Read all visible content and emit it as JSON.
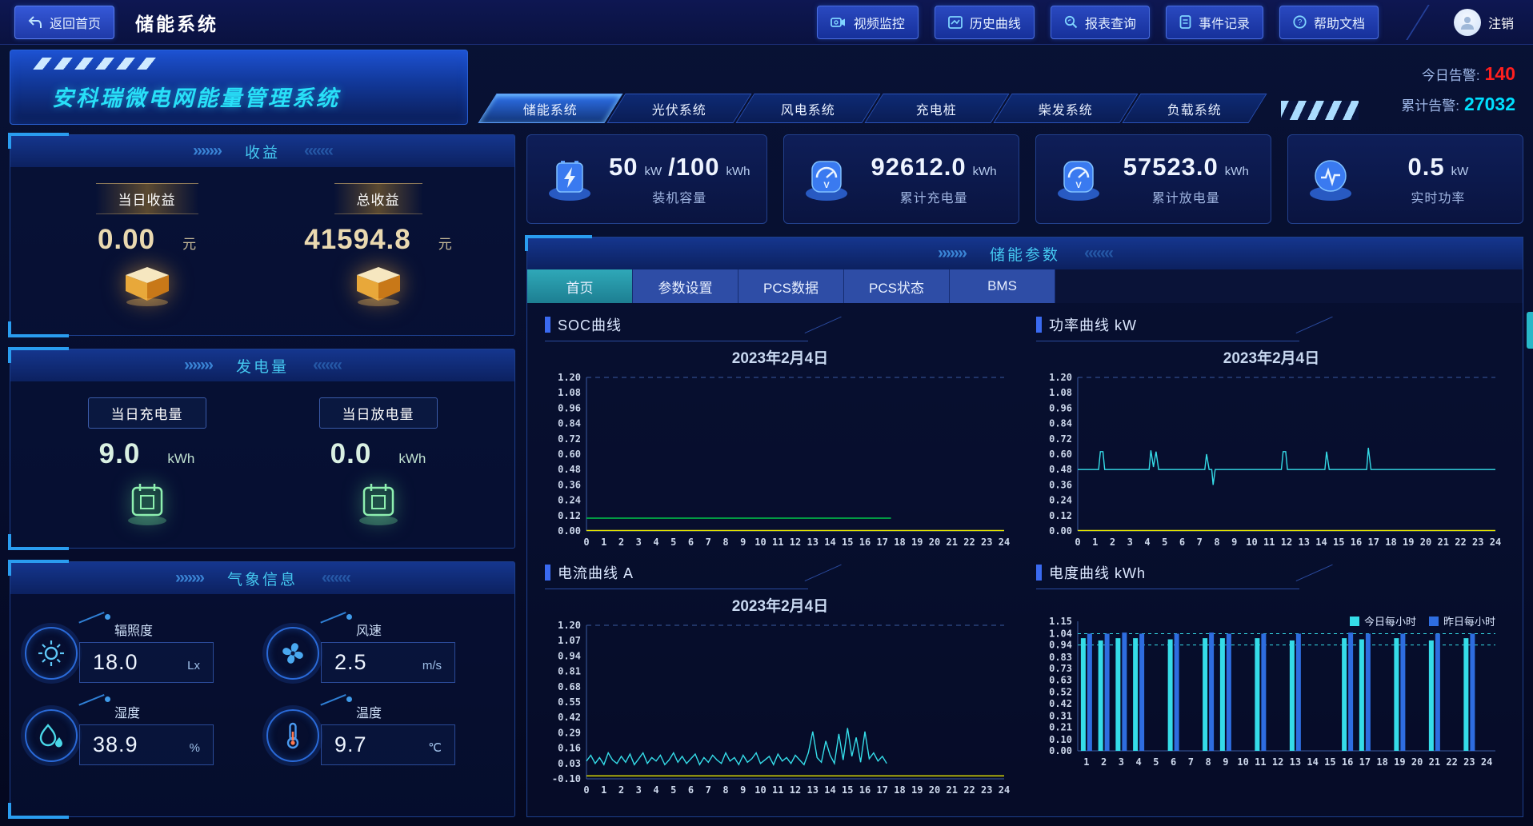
{
  "topbar": {
    "back_label": "返回首页",
    "title": "储能系统",
    "buttons": [
      {
        "label": "视频监控"
      },
      {
        "label": "历史曲线"
      },
      {
        "label": "报表查询"
      },
      {
        "label": "事件记录"
      },
      {
        "label": "帮助文档"
      }
    ],
    "logout": "注销"
  },
  "decor": {
    "chev_r": "›››››››",
    "chev_l": "‹‹‹‹‹‹‹"
  },
  "header": {
    "brand": "安科瑞微电网能量管理系统",
    "tabs": [
      {
        "label": "储能系统"
      },
      {
        "label": "光伏系统"
      },
      {
        "label": "风电系统"
      },
      {
        "label": "充电桩"
      },
      {
        "label": "柴发系统"
      },
      {
        "label": "负载系统"
      }
    ],
    "alarms": {
      "today_label": "今日告警:",
      "today_value": "140",
      "total_label": "累计告警:",
      "total_value": "27032"
    }
  },
  "left": {
    "income": {
      "title": "收益",
      "items": [
        {
          "label": "当日收益",
          "value": "0.00",
          "unit": "元"
        },
        {
          "label": "总收益",
          "value": "41594.8",
          "unit": "元"
        }
      ]
    },
    "generation": {
      "title": "发电量",
      "items": [
        {
          "label": "当日充电量",
          "value": "9.0",
          "unit": "kWh"
        },
        {
          "label": "当日放电量",
          "value": "0.0",
          "unit": "kWh"
        }
      ]
    },
    "weather": {
      "title": "气象信息",
      "items": [
        {
          "label": "辐照度",
          "value": "18.0",
          "unit": "Lx"
        },
        {
          "label": "风速",
          "value": "2.5",
          "unit": "m/s"
        },
        {
          "label": "湿度",
          "value": "38.9",
          "unit": "%"
        },
        {
          "label": "温度",
          "value": "9.7",
          "unit": "℃"
        }
      ]
    }
  },
  "stats": [
    {
      "value": "50",
      "unit": "kW",
      "extra": "/100",
      "extra_unit": "kWh",
      "label": "装机容量"
    },
    {
      "value": "92612.0",
      "unit": "kWh",
      "label": "累计充电量"
    },
    {
      "value": "57523.0",
      "unit": "kWh",
      "label": "累计放电量"
    },
    {
      "value": "0.5",
      "unit": "kW",
      "label": "实时功率"
    }
  ],
  "params_panel": {
    "title": "储能参数",
    "tabs": [
      {
        "label": "首页"
      },
      {
        "label": "参数设置"
      },
      {
        "label": "PCS数据"
      },
      {
        "label": "PCS状态"
      },
      {
        "label": "BMS"
      }
    ]
  },
  "chart_data": [
    {
      "id": "soc",
      "type": "line",
      "title": "SOC曲线",
      "date": "2023年2月4日",
      "ylim": [
        0,
        1.2
      ],
      "yticks": [
        "1.20",
        "1.08",
        "0.96",
        "0.84",
        "0.72",
        "0.60",
        "0.48",
        "0.36",
        "0.24",
        "0.12",
        "0.00"
      ],
      "xlim": [
        0,
        24
      ],
      "xticks": [
        0,
        1,
        2,
        3,
        4,
        5,
        6,
        7,
        8,
        9,
        10,
        11,
        12,
        13,
        14,
        15,
        16,
        17,
        18,
        19,
        20,
        21,
        22,
        23,
        24
      ],
      "series": [
        {
          "name": "SOC",
          "color": "#00c84b",
          "points": [
            [
              0,
              0.1
            ],
            [
              17.5,
              0.1
            ]
          ]
        },
        {
          "name": "基线",
          "color": "#e8e800",
          "points": [
            [
              0,
              0.004
            ],
            [
              24,
              0.004
            ]
          ]
        }
      ]
    },
    {
      "id": "power",
      "type": "line",
      "title": "功率曲线  kW",
      "date": "2023年2月4日",
      "ylim": [
        0,
        1.2
      ],
      "yticks": [
        "1.20",
        "1.08",
        "0.96",
        "0.84",
        "0.72",
        "0.60",
        "0.48",
        "0.36",
        "0.24",
        "0.12",
        "0.00"
      ],
      "xlim": [
        0,
        24
      ],
      "xticks": [
        0,
        1,
        2,
        3,
        4,
        5,
        6,
        7,
        8,
        9,
        10,
        11,
        12,
        13,
        14,
        15,
        16,
        17,
        18,
        19,
        20,
        21,
        22,
        23,
        24
      ],
      "series": [
        {
          "name": "功率",
          "color": "#35dce8",
          "points": [
            [
              0,
              0.48
            ],
            [
              1.2,
              0.48
            ],
            [
              1.3,
              0.62
            ],
            [
              1.45,
              0.62
            ],
            [
              1.55,
              0.48
            ],
            [
              4.1,
              0.48
            ],
            [
              4.2,
              0.63
            ],
            [
              4.35,
              0.5
            ],
            [
              4.5,
              0.62
            ],
            [
              4.65,
              0.48
            ],
            [
              7.3,
              0.48
            ],
            [
              7.4,
              0.6
            ],
            [
              7.55,
              0.48
            ],
            [
              7.7,
              0.48
            ],
            [
              7.78,
              0.36
            ],
            [
              7.9,
              0.48
            ],
            [
              11.7,
              0.48
            ],
            [
              11.8,
              0.62
            ],
            [
              11.95,
              0.62
            ],
            [
              12.05,
              0.48
            ],
            [
              14.2,
              0.48
            ],
            [
              14.3,
              0.62
            ],
            [
              14.45,
              0.48
            ],
            [
              16.6,
              0.48
            ],
            [
              16.7,
              0.65
            ],
            [
              16.85,
              0.48
            ],
            [
              24,
              0.48
            ]
          ]
        },
        {
          "name": "基线",
          "color": "#e8e800",
          "points": [
            [
              0,
              0.004
            ],
            [
              24,
              0.004
            ]
          ]
        }
      ]
    },
    {
      "id": "current",
      "type": "line",
      "title": "电流曲线  A",
      "date": "2023年2月4日",
      "ylim": [
        -0.1,
        1.2
      ],
      "yticks": [
        "1.20",
        "1.07",
        "0.94",
        "0.81",
        "0.68",
        "0.55",
        "0.42",
        "0.29",
        "0.16",
        "0.03",
        "-0.10"
      ],
      "xlim": [
        0,
        24
      ],
      "xticks": [
        0,
        1,
        2,
        3,
        4,
        5,
        6,
        7,
        8,
        9,
        10,
        11,
        12,
        13,
        14,
        15,
        16,
        17,
        18,
        19,
        20,
        21,
        22,
        23,
        24
      ],
      "series": [
        {
          "name": "电流",
          "color": "#35dce8",
          "x_start": 0,
          "x_step": 0.25,
          "y_values": [
            0.05,
            0.1,
            0.03,
            0.08,
            0.02,
            0.12,
            0.06,
            0.03,
            0.09,
            0.04,
            0.11,
            0.02,
            0.07,
            0.12,
            0.03,
            0.08,
            0.05,
            0.1,
            0.02,
            0.06,
            0.12,
            0.04,
            0.09,
            0.03,
            0.07,
            0.11,
            0.02,
            0.08,
            0.04,
            0.1,
            0.06,
            0.03,
            0.12,
            0.05,
            0.08,
            0.02,
            0.1,
            0.04,
            0.07,
            0.12,
            0.03,
            0.06,
            0.09,
            0.02,
            0.11,
            0.05,
            0.08,
            0.03,
            0.1,
            0.06,
            0.02,
            0.12,
            0.3,
            0.08,
            0.04,
            0.22,
            0.1,
            0.03,
            0.28,
            0.06,
            0.33,
            0.09,
            0.25,
            0.04,
            0.3,
            0.07,
            0.12,
            0.05,
            0.09,
            0.03
          ]
        },
        {
          "name": "基线",
          "color": "#e8e800",
          "points": [
            [
              0,
              -0.075
            ],
            [
              24,
              -0.075
            ]
          ]
        }
      ]
    },
    {
      "id": "energy",
      "type": "bar",
      "title": "电度曲线  kWh",
      "ylim": [
        0,
        1.15
      ],
      "yticks": [
        "1.15",
        "1.04",
        "0.94",
        "0.83",
        "0.73",
        "0.63",
        "0.52",
        "0.42",
        "0.31",
        "0.21",
        "0.10",
        "0.00"
      ],
      "categories": [
        1,
        2,
        3,
        4,
        5,
        6,
        7,
        8,
        9,
        10,
        11,
        12,
        13,
        14,
        15,
        16,
        17,
        18,
        19,
        20,
        21,
        22,
        23,
        24
      ],
      "xticks": [
        1,
        2,
        3,
        4,
        5,
        6,
        7,
        8,
        9,
        10,
        11,
        12,
        13,
        14,
        15,
        16,
        17,
        18,
        19,
        20,
        21,
        22,
        23,
        24
      ],
      "marklines": [
        1.04,
        0.94
      ],
      "series": [
        {
          "name": "今日每小时",
          "color": "#35dce8",
          "values": [
            1.0,
            0.98,
            1.0,
            1.0,
            0,
            0.99,
            0,
            1.0,
            1.0,
            0,
            1.0,
            0,
            0.98,
            0,
            0,
            1.0,
            0.99,
            0,
            1.0,
            0,
            0.98,
            0,
            1.0,
            0
          ]
        },
        {
          "name": "昨日每小时",
          "color": "#2e6de0",
          "values": [
            1.04,
            1.04,
            1.05,
            1.04,
            0,
            1.04,
            0,
            1.05,
            1.04,
            0,
            1.04,
            0,
            1.04,
            0,
            0,
            1.05,
            1.04,
            0,
            1.04,
            0,
            1.04,
            0,
            1.04,
            0
          ]
        }
      ]
    }
  ]
}
